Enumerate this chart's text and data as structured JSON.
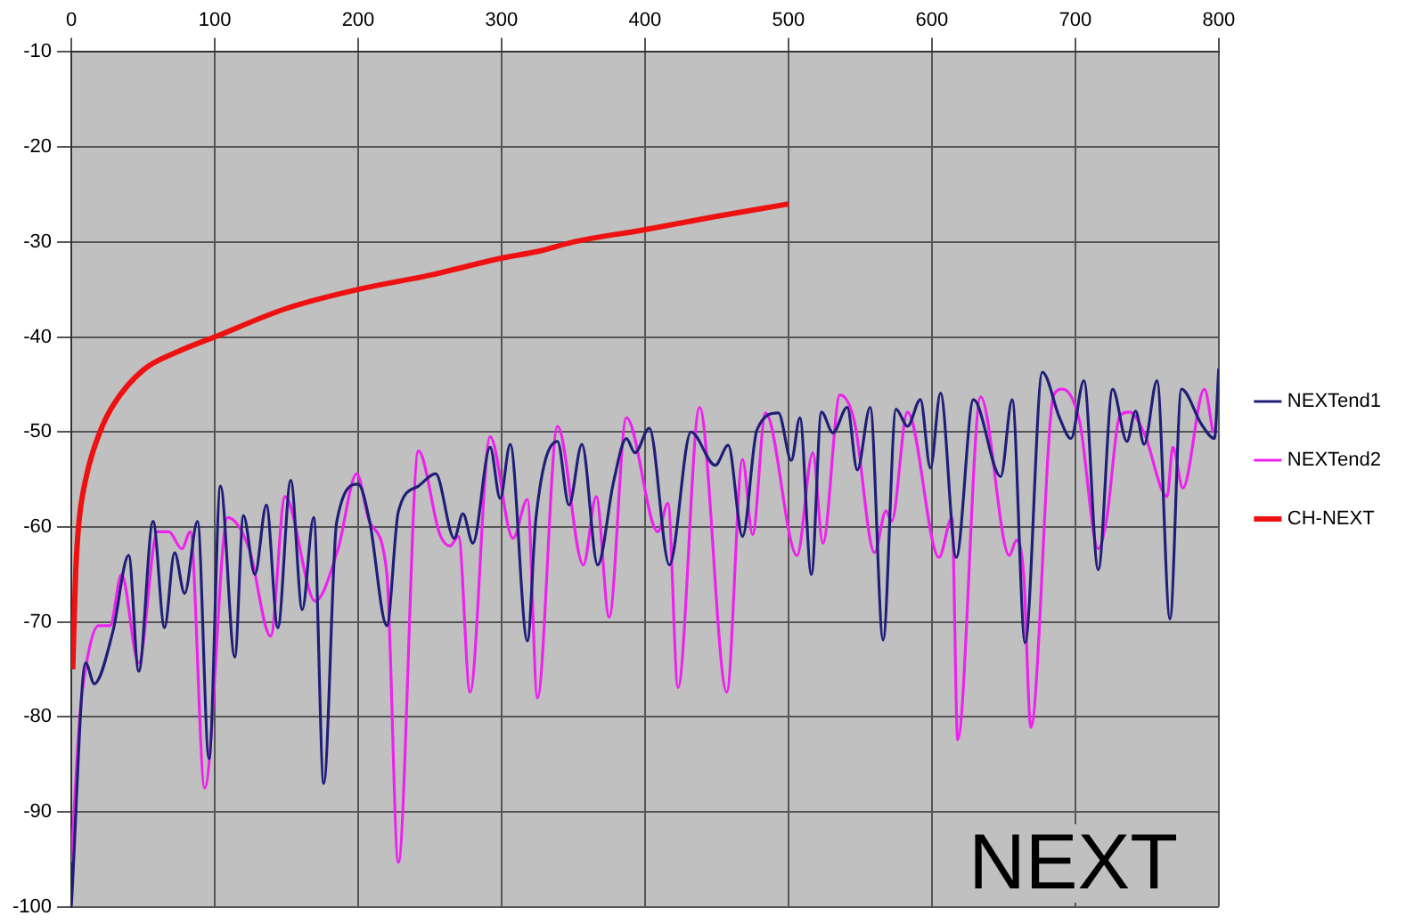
{
  "chart_data": {
    "type": "line",
    "annotations": [
      "NEXT"
    ],
    "xlim": [
      0,
      800
    ],
    "xticks": [
      0,
      100,
      200,
      300,
      400,
      500,
      600,
      700,
      800
    ],
    "ylim": [
      -100,
      -10
    ],
    "yticks": [
      -100,
      -90,
      -80,
      -70,
      -60,
      -50,
      -40,
      -30,
      -20,
      -10
    ],
    "grid": true,
    "legend": "right",
    "marker": "none",
    "line_style": "solid",
    "series": [
      {
        "name": "NEXTend1",
        "color": "#1f1f7a",
        "x": [
          0,
          10,
          16,
          29,
          40,
          47,
          57,
          65,
          72,
          79,
          88,
          96,
          104,
          114,
          120,
          128,
          136,
          144,
          153,
          161,
          169,
          176,
          185,
          200,
          208,
          220,
          228,
          242,
          254,
          267,
          273,
          280,
          292,
          299,
          306,
          318,
          324,
          339,
          347,
          356,
          367,
          378,
          387,
          393,
          403,
          417,
          432,
          449,
          458,
          468,
          478,
          493,
          502,
          508,
          516,
          523,
          531,
          541,
          548,
          557,
          566,
          575,
          583,
          592,
          599,
          606,
          617,
          629,
          648,
          656,
          665,
          677,
          689,
          697,
          706,
          716,
          726,
          736,
          742,
          748,
          757,
          766,
          774,
          788,
          797,
          800
        ],
        "values": [
          -100,
          -74.3,
          -76.5,
          -71,
          -63,
          -75.2,
          -59.4,
          -70.6,
          -62.7,
          -67,
          -59.4,
          -84.4,
          -55.7,
          -73.7,
          -58.8,
          -65,
          -57.7,
          -70.6,
          -55.1,
          -68.7,
          -59,
          -87,
          -59.5,
          -55.5,
          -59.4,
          -70.4,
          -58.4,
          -55.7,
          -54.4,
          -61.2,
          -58.6,
          -61.7,
          -51.6,
          -57,
          -51.3,
          -72,
          -59,
          -51,
          -57.7,
          -51.3,
          -64,
          -55.3,
          -50.7,
          -52.2,
          -49.6,
          -64,
          -50,
          -53.5,
          -51.4,
          -61,
          -49.8,
          -48,
          -53,
          -48.5,
          -65,
          -47.9,
          -50.1,
          -47.4,
          -54,
          -47.4,
          -71.9,
          -47.6,
          -49.4,
          -46.6,
          -53.8,
          -45.9,
          -63.2,
          -46.6,
          -54.7,
          -46.6,
          -72.2,
          -43.7,
          -48.5,
          -50.7,
          -44.6,
          -64.5,
          -45.5,
          -51,
          -47.8,
          -51.3,
          -44.6,
          -69.7,
          -45.5,
          -49.2,
          -50.7,
          -43.3
        ]
      },
      {
        "name": "NEXTend2",
        "color": "#ee22ee",
        "x": [
          0,
          6,
          12,
          19,
          27,
          35,
          47,
          60,
          68,
          77,
          83,
          93,
          109,
          124,
          139,
          149,
          170,
          186,
          199,
          208,
          220,
          228,
          242,
          257,
          264,
          270,
          278,
          292,
          308,
          318,
          325,
          339,
          357,
          366,
          375,
          387,
          409,
          416,
          423,
          438,
          457,
          468,
          475,
          484,
          506,
          517,
          524,
          536,
          546,
          560,
          568,
          572,
          583,
          605,
          614,
          618,
          634,
          654,
          659,
          664,
          669,
          685,
          691,
          703,
          716,
          722,
          731,
          738,
          748,
          764,
          768,
          775,
          790,
          796
        ],
        "values": [
          -95.3,
          -79.8,
          -73.2,
          -70.4,
          -70.4,
          -65,
          -74.3,
          -60.5,
          -60.5,
          -62.3,
          -60.5,
          -87.5,
          -59,
          -62.3,
          -71.5,
          -56.8,
          -67.8,
          -62.3,
          -54.4,
          -59.5,
          -64.9,
          -95.3,
          -52,
          -60.8,
          -62,
          -61,
          -77.4,
          -50.5,
          -61.2,
          -57.1,
          -78,
          -49.4,
          -64,
          -56.8,
          -69.5,
          -48.5,
          -60.5,
          -57.5,
          -76.9,
          -47.4,
          -77.4,
          -52.9,
          -60.8,
          -48,
          -63,
          -52.2,
          -61.7,
          -46.1,
          -48.9,
          -62.7,
          -58.3,
          -59.4,
          -47.9,
          -63.2,
          -59,
          -82.4,
          -46.3,
          -63,
          -61.4,
          -65,
          -81.1,
          -46.1,
          -45.5,
          -48.9,
          -62.3,
          -59,
          -48.3,
          -47.9,
          -50.1,
          -56.8,
          -51.6,
          -55.9,
          -45.5,
          -50.1
        ]
      },
      {
        "name": "CH-NEXT",
        "color": "#ee1111",
        "x": [
          1,
          3,
          5,
          10,
          20,
          30,
          50,
          75,
          100,
          150,
          200,
          250,
          300,
          325,
          350,
          400,
          450,
          500
        ],
        "values": [
          -75,
          -65,
          -60,
          -55,
          -50,
          -47,
          -43.5,
          -41.5,
          -40,
          -37,
          -35,
          -33.5,
          -31.7,
          -31,
          -30,
          -28.7,
          -27.3,
          -26
        ]
      }
    ]
  }
}
